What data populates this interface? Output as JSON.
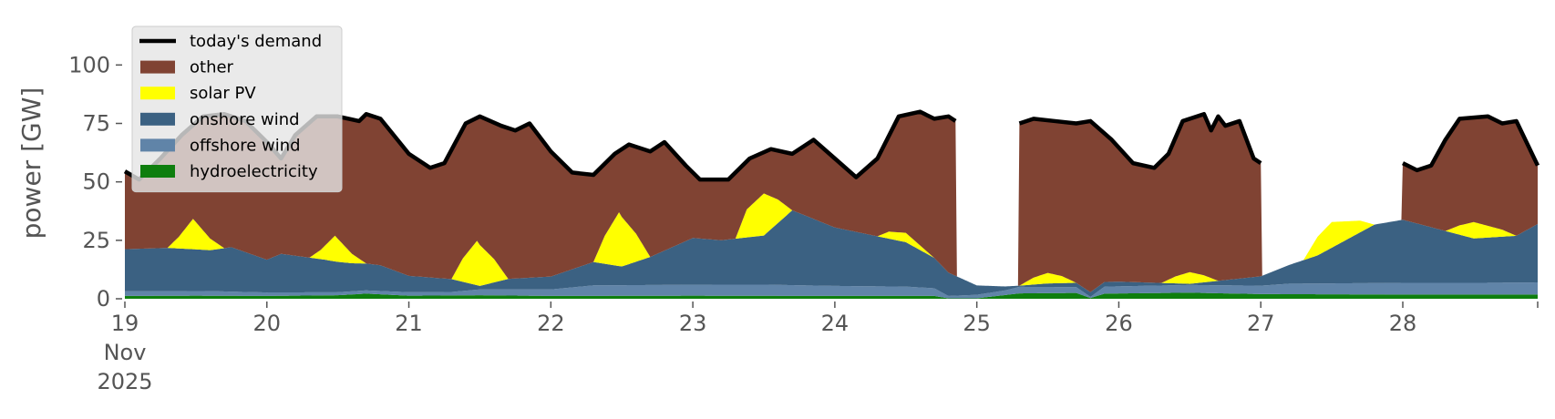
{
  "chart_data": {
    "type": "area",
    "title": "",
    "xlabel": "",
    "ylabel": "power [GW]",
    "ylim": [
      0,
      120
    ],
    "yticks": [
      0,
      25,
      50,
      75,
      100
    ],
    "xlim": [
      19,
      28.95
    ],
    "x_ticks": [
      {
        "day": 19,
        "label": "19",
        "sublabel1": "Nov",
        "sublabel2": "2025"
      },
      {
        "day": 20,
        "label": "20"
      },
      {
        "day": 21,
        "label": "21"
      },
      {
        "day": 22,
        "label": "22"
      },
      {
        "day": 23,
        "label": "23"
      },
      {
        "day": 24,
        "label": "24"
      },
      {
        "day": 25,
        "label": "25"
      },
      {
        "day": 26,
        "label": "26"
      },
      {
        "day": 27,
        "label": "27"
      },
      {
        "day": 28,
        "label": "28"
      }
    ],
    "x_unit": "day of November 2025",
    "grid": false,
    "legend_position": "top-left",
    "legend": [
      {
        "label": "today's demand",
        "swatch": "line",
        "color": "#000000"
      },
      {
        "label": "other",
        "swatch": "patch",
        "color": "#804333"
      },
      {
        "label": "solar PV",
        "swatch": "patch",
        "color": "#ffff00"
      },
      {
        "label": "onshore wind",
        "swatch": "patch",
        "color": "#3b6182"
      },
      {
        "label": "offshore wind",
        "swatch": "patch",
        "color": "#6084a8"
      },
      {
        "label": "hydroelectricity",
        "swatch": "patch",
        "color": "#0e7e0e"
      }
    ],
    "stack_order": [
      "hydroelectricity",
      "offshore wind",
      "onshore wind",
      "solar PV",
      "other"
    ],
    "series": {
      "hydroelectricity": [
        [
          19,
          1.2
        ],
        [
          19.5,
          1.3
        ],
        [
          20,
          1.2
        ],
        [
          20.5,
          1.5
        ],
        [
          20.7,
          2.2
        ],
        [
          21,
          1.3
        ],
        [
          21.5,
          1.5
        ],
        [
          22,
          1.2
        ],
        [
          23,
          1.3
        ],
        [
          24,
          1.2
        ],
        [
          24.7,
          1.2
        ],
        [
          24.8,
          0.2
        ],
        [
          25.0,
          0.2
        ],
        [
          25.3,
          2.3
        ],
        [
          25.7,
          2.5
        ],
        [
          25.8,
          0.3
        ],
        [
          25.9,
          2.2
        ],
        [
          26.5,
          2.6
        ],
        [
          27,
          2.0
        ],
        [
          28,
          1.8
        ],
        [
          28.95,
          1.8
        ]
      ],
      "offshore wind": [
        [
          19,
          2.0
        ],
        [
          19.6,
          2.0
        ],
        [
          20,
          1.5
        ],
        [
          20.5,
          1.3
        ],
        [
          21,
          1.5
        ],
        [
          21.3,
          1.5
        ],
        [
          21.5,
          2.5
        ],
        [
          22,
          2.8
        ],
        [
          22.3,
          4.5
        ],
        [
          23,
          4.7
        ],
        [
          23.5,
          4.8
        ],
        [
          24,
          4.3
        ],
        [
          24.5,
          4.0
        ],
        [
          24.7,
          3.3
        ],
        [
          24.8,
          1.0
        ],
        [
          25,
          1.5
        ],
        [
          25.2,
          2.0
        ],
        [
          25.3,
          2.8
        ],
        [
          25.7,
          2.5
        ],
        [
          25.8,
          0.5
        ],
        [
          25.9,
          3.0
        ],
        [
          26.5,
          3.3
        ],
        [
          27,
          3.6
        ],
        [
          27.2,
          4.5
        ],
        [
          28,
          5.0
        ],
        [
          28.5,
          5.0
        ],
        [
          28.95,
          5.2
        ]
      ],
      "onshore wind": [
        [
          19,
          18
        ],
        [
          19.3,
          18.5
        ],
        [
          19.6,
          17.5
        ],
        [
          19.75,
          19
        ],
        [
          20,
          14
        ],
        [
          20.1,
          16.5
        ],
        [
          20.4,
          14
        ],
        [
          20.6,
          12
        ],
        [
          20.8,
          11
        ],
        [
          21,
          7
        ],
        [
          21.3,
          5.5
        ],
        [
          21.5,
          1.5
        ],
        [
          21.7,
          4.5
        ],
        [
          22,
          5.5
        ],
        [
          22.3,
          10
        ],
        [
          22.5,
          8
        ],
        [
          22.7,
          12
        ],
        [
          23,
          20
        ],
        [
          23.2,
          19
        ],
        [
          23.5,
          21
        ],
        [
          23.7,
          32
        ],
        [
          24,
          25
        ],
        [
          24.5,
          19
        ],
        [
          24.8,
          10
        ],
        [
          25,
          4
        ],
        [
          25.3,
          0.5
        ],
        [
          25.5,
          1.5
        ],
        [
          25.8,
          2
        ],
        [
          26,
          2
        ],
        [
          26.5,
          0.5
        ],
        [
          27,
          4
        ],
        [
          27.4,
          12
        ],
        [
          27.8,
          25
        ],
        [
          28,
          27
        ],
        [
          28.5,
          19
        ],
        [
          28.8,
          20
        ],
        [
          28.95,
          25
        ]
      ],
      "solar PV": [
        [
          19,
          0
        ],
        [
          19.3,
          0
        ],
        [
          19.38,
          5
        ],
        [
          19.48,
          13
        ],
        [
          19.6,
          5
        ],
        [
          19.7,
          0
        ],
        [
          20.3,
          0
        ],
        [
          20.38,
          4
        ],
        [
          20.48,
          11
        ],
        [
          20.6,
          4
        ],
        [
          20.7,
          0
        ],
        [
          21.3,
          0
        ],
        [
          21.38,
          10
        ],
        [
          21.48,
          19
        ],
        [
          21.6,
          10
        ],
        [
          21.7,
          0
        ],
        [
          22.3,
          0
        ],
        [
          22.38,
          12
        ],
        [
          22.48,
          23
        ],
        [
          22.6,
          12
        ],
        [
          22.7,
          0
        ],
        [
          23.3,
          0
        ],
        [
          23.38,
          12
        ],
        [
          23.5,
          18
        ],
        [
          23.6,
          10
        ],
        [
          23.7,
          0
        ],
        [
          24.3,
          0
        ],
        [
          24.38,
          3
        ],
        [
          24.5,
          4
        ],
        [
          24.6,
          2
        ],
        [
          24.7,
          0
        ],
        [
          25.3,
          0
        ],
        [
          25.4,
          3
        ],
        [
          25.5,
          4.5
        ],
        [
          25.6,
          3
        ],
        [
          25.7,
          0
        ],
        [
          26.3,
          0
        ],
        [
          26.4,
          3
        ],
        [
          26.5,
          5
        ],
        [
          26.6,
          3
        ],
        [
          26.7,
          0
        ],
        [
          27.3,
          0
        ],
        [
          27.4,
          8
        ],
        [
          27.5,
          11
        ],
        [
          27.7,
          5
        ],
        [
          27.8,
          0
        ],
        [
          28.3,
          0
        ],
        [
          28.4,
          4
        ],
        [
          28.5,
          7
        ],
        [
          28.7,
          3
        ],
        [
          28.8,
          0
        ],
        [
          28.95,
          0
        ]
      ],
      "today's demand": [
        [
          19,
          54.5
        ],
        [
          19.1,
          51
        ],
        [
          19.25,
          60
        ],
        [
          19.4,
          70
        ],
        [
          19.55,
          78
        ],
        [
          19.7,
          79
        ],
        [
          19.85,
          76
        ],
        [
          20,
          67
        ],
        [
          20.1,
          60
        ],
        [
          20.2,
          70
        ],
        [
          20.35,
          78
        ],
        [
          20.5,
          78
        ],
        [
          20.65,
          76
        ],
        [
          20.7,
          79
        ],
        [
          20.8,
          77
        ],
        [
          21,
          62
        ],
        [
          21.15,
          56
        ],
        [
          21.25,
          58
        ],
        [
          21.4,
          75
        ],
        [
          21.5,
          78
        ],
        [
          21.65,
          74
        ],
        [
          21.75,
          72
        ],
        [
          21.85,
          75
        ],
        [
          22,
          63
        ],
        [
          22.15,
          54
        ],
        [
          22.3,
          53
        ],
        [
          22.45,
          62
        ],
        [
          22.55,
          66
        ],
        [
          22.7,
          63
        ],
        [
          22.8,
          67
        ],
        [
          22.95,
          57
        ],
        [
          23.05,
          51
        ],
        [
          23.25,
          51
        ],
        [
          23.4,
          60
        ],
        [
          23.55,
          64
        ],
        [
          23.7,
          62
        ],
        [
          23.85,
          68
        ],
        [
          24,
          60
        ],
        [
          24.15,
          52
        ],
        [
          24.3,
          60
        ],
        [
          24.45,
          78
        ],
        [
          24.6,
          80
        ],
        [
          24.7,
          77
        ],
        [
          24.8,
          78
        ],
        [
          24.85,
          76
        ],
        [
          25.3,
          75
        ],
        [
          25.4,
          77
        ],
        [
          25.55,
          76
        ],
        [
          25.7,
          75
        ],
        [
          25.8,
          76
        ],
        [
          25.95,
          68
        ],
        [
          26.1,
          58
        ],
        [
          26.25,
          56
        ],
        [
          26.35,
          62
        ],
        [
          26.45,
          76
        ],
        [
          26.6,
          79
        ],
        [
          26.65,
          72
        ],
        [
          26.7,
          78
        ],
        [
          26.75,
          74
        ],
        [
          26.85,
          76
        ],
        [
          26.95,
          60
        ],
        [
          27,
          58
        ],
        [
          28,
          58
        ],
        [
          28.1,
          55
        ],
        [
          28.2,
          57
        ],
        [
          28.3,
          68
        ],
        [
          28.4,
          77
        ],
        [
          28.6,
          78
        ],
        [
          28.7,
          75
        ],
        [
          28.8,
          76
        ],
        [
          28.95,
          57
        ]
      ],
      "demand_gaps": [
        [
          24.85,
          25.3
        ],
        [
          27.0,
          28.0
        ]
      ]
    }
  }
}
